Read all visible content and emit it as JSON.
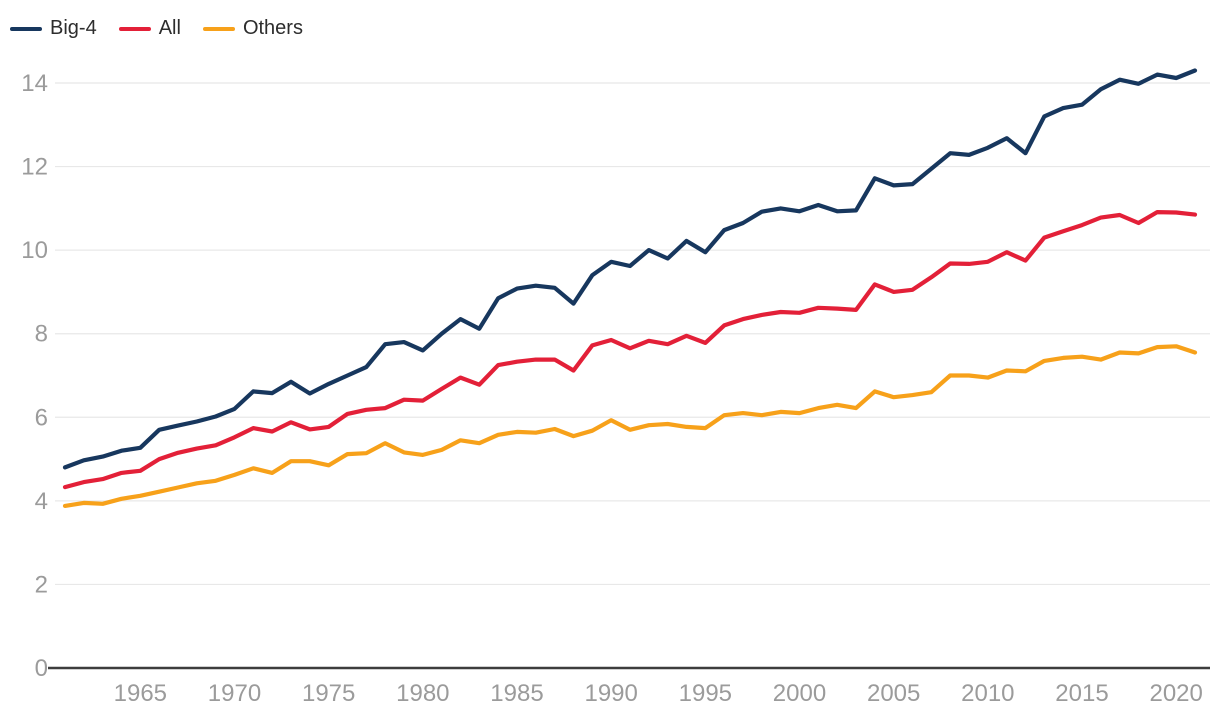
{
  "chart_data": {
    "type": "line",
    "title": "",
    "xlabel": "",
    "ylabel": "",
    "ylim": [
      0,
      14
    ],
    "yticks": [
      0,
      2,
      4,
      6,
      8,
      10,
      12,
      14
    ],
    "xticks": [
      1965,
      1970,
      1975,
      1980,
      1985,
      1990,
      1995,
      2000,
      2005,
      2010,
      2015,
      2020
    ],
    "grid": "horizontal",
    "legend_position": "top-left",
    "x": [
      1961,
      1962,
      1963,
      1964,
      1965,
      1966,
      1967,
      1968,
      1969,
      1970,
      1971,
      1972,
      1973,
      1974,
      1975,
      1976,
      1977,
      1978,
      1979,
      1980,
      1981,
      1982,
      1983,
      1984,
      1985,
      1986,
      1987,
      1988,
      1989,
      1990,
      1991,
      1992,
      1993,
      1994,
      1995,
      1996,
      1997,
      1998,
      1999,
      2000,
      2001,
      2002,
      2003,
      2004,
      2005,
      2006,
      2007,
      2008,
      2009,
      2010,
      2011,
      2012,
      2013,
      2014,
      2015,
      2016,
      2017,
      2018,
      2019,
      2020,
      2021
    ],
    "series": [
      {
        "name": "Big-4",
        "color": "#17375e",
        "values": [
          4.8,
          4.97,
          5.06,
          5.2,
          5.27,
          5.7,
          5.8,
          5.9,
          6.02,
          6.2,
          6.62,
          6.58,
          6.85,
          6.57,
          6.8,
          7.0,
          7.2,
          7.75,
          7.8,
          7.6,
          8.0,
          8.35,
          8.12,
          8.85,
          9.08,
          9.15,
          9.1,
          8.72,
          9.4,
          9.72,
          9.62,
          10.0,
          9.8,
          10.22,
          9.95,
          10.48,
          10.65,
          10.92,
          11.0,
          10.93,
          11.08,
          10.93,
          10.95,
          11.72,
          11.55,
          11.58,
          11.95,
          12.32,
          12.28,
          12.45,
          12.68,
          12.32,
          13.2,
          13.4,
          13.48,
          13.85,
          14.08,
          13.98,
          14.2,
          14.12,
          14.3
        ]
      },
      {
        "name": "All",
        "color": "#e32038",
        "values": [
          4.33,
          4.45,
          4.52,
          4.67,
          4.72,
          5.0,
          5.15,
          5.25,
          5.33,
          5.52,
          5.74,
          5.66,
          5.88,
          5.71,
          5.77,
          6.08,
          6.18,
          6.22,
          6.42,
          6.4,
          6.68,
          6.95,
          6.78,
          7.25,
          7.33,
          7.38,
          7.38,
          7.12,
          7.72,
          7.85,
          7.65,
          7.83,
          7.75,
          7.95,
          7.78,
          8.2,
          8.35,
          8.45,
          8.52,
          8.5,
          8.62,
          8.6,
          8.57,
          9.18,
          9.0,
          9.05,
          9.35,
          9.68,
          9.67,
          9.72,
          9.95,
          9.75,
          10.3,
          10.45,
          10.6,
          10.78,
          10.84,
          10.65,
          10.91,
          10.9,
          10.85
        ]
      },
      {
        "name": "Others",
        "color": "#f7a11a",
        "values": [
          3.88,
          3.95,
          3.93,
          4.05,
          4.12,
          4.22,
          4.32,
          4.42,
          4.48,
          4.62,
          4.78,
          4.67,
          4.95,
          4.95,
          4.85,
          5.12,
          5.14,
          5.38,
          5.16,
          5.1,
          5.22,
          5.45,
          5.38,
          5.58,
          5.65,
          5.63,
          5.72,
          5.55,
          5.68,
          5.93,
          5.7,
          5.81,
          5.84,
          5.77,
          5.74,
          6.05,
          6.1,
          6.05,
          6.13,
          6.1,
          6.22,
          6.3,
          6.22,
          6.62,
          6.48,
          6.53,
          6.6,
          7.0,
          7.0,
          6.95,
          7.12,
          7.1,
          7.35,
          7.42,
          7.45,
          7.38,
          7.55,
          7.53,
          7.68,
          7.7,
          7.55
        ]
      }
    ],
    "style": {
      "grid_color": "#e8e8e8",
      "axis_color": "#3d3d3d",
      "tick_color": "#9b9b9b",
      "line_width": 4.2
    }
  }
}
